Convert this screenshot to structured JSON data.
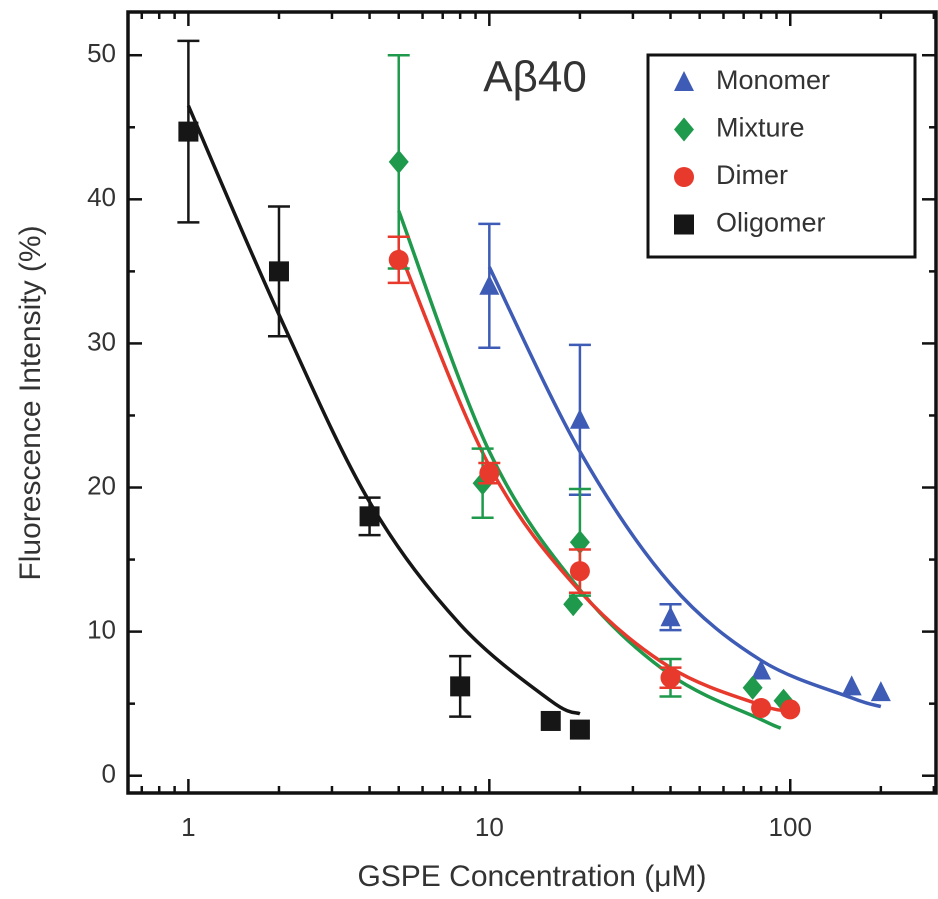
{
  "chart_data": {
    "type": "scatter",
    "title": "Aβ40",
    "x_label": "GSPE Concentration (μM)",
    "y_label": "Fluorescence Intensity (%)",
    "xscale": "log",
    "xlim": [
      0.63,
      305
    ],
    "ylim": [
      -1.2,
      53
    ],
    "xticks": [
      1,
      10,
      100
    ],
    "xminorticks": [
      0.7,
      0.8,
      0.9,
      2,
      3,
      4,
      5,
      6,
      7,
      8,
      9,
      20,
      30,
      40,
      50,
      60,
      70,
      80,
      90,
      200,
      300
    ],
    "yticks": [
      0,
      10,
      20,
      30,
      40,
      50
    ],
    "yminorticks": [
      5,
      15,
      25,
      35,
      45
    ],
    "legend": "upper right",
    "series": [
      {
        "name": "Monomer",
        "color": "#3e5cb5",
        "marker": "triangle",
        "x": [
          10,
          20,
          40,
          80,
          160,
          200
        ],
        "values": [
          34,
          24.7,
          11,
          7.3,
          6.2,
          5.8
        ],
        "errors": [
          4.3,
          5.2,
          0.9,
          null,
          null,
          null
        ],
        "fit": {
          "x": [
            10,
            20,
            40,
            80,
            160,
            200
          ],
          "y": [
            35.3,
            22.5,
            13.3,
            8,
            5.4,
            4.8
          ]
        }
      },
      {
        "name": "Mixture",
        "color": "#1f9a4c",
        "marker": "diamond",
        "x": [
          5,
          9.5,
          19,
          20,
          40,
          75,
          95
        ],
        "values": [
          42.6,
          20.3,
          11.9,
          16.2,
          6.8,
          6.1,
          5.2
        ],
        "errors": [
          7.4,
          2.4,
          null,
          3.7,
          1.3,
          null,
          null
        ],
        "fit": {
          "x": [
            5,
            10,
            20,
            40,
            80,
            93
          ],
          "y": [
            39.2,
            22.5,
            12.9,
            7,
            3.9,
            3.3
          ]
        }
      },
      {
        "name": "Dimer",
        "color": "#e8392d",
        "marker": "circle",
        "x": [
          5,
          10,
          20,
          40,
          80,
          100
        ],
        "values": [
          35.8,
          21,
          14.2,
          6.8,
          4.7,
          4.6
        ],
        "errors": [
          1.6,
          0.7,
          1.5,
          0.7,
          null,
          null
        ],
        "fit": {
          "x": [
            5,
            10,
            20,
            40,
            80,
            100
          ],
          "y": [
            36.5,
            21.5,
            12.8,
            7.5,
            4.9,
            4.5
          ]
        }
      },
      {
        "name": "Oligomer",
        "color": "#161616",
        "marker": "square",
        "x": [
          1,
          2,
          4,
          8,
          16,
          20
        ],
        "values": [
          44.7,
          35,
          18,
          6.2,
          3.8,
          3.2
        ],
        "errors": [
          6.3,
          4.5,
          1.3,
          2.1,
          null,
          null
        ],
        "fit": {
          "x": [
            1,
            2,
            4,
            8,
            16,
            20
          ],
          "y": [
            46.5,
            32,
            19,
            10.5,
            5.2,
            4.3
          ]
        }
      }
    ]
  }
}
